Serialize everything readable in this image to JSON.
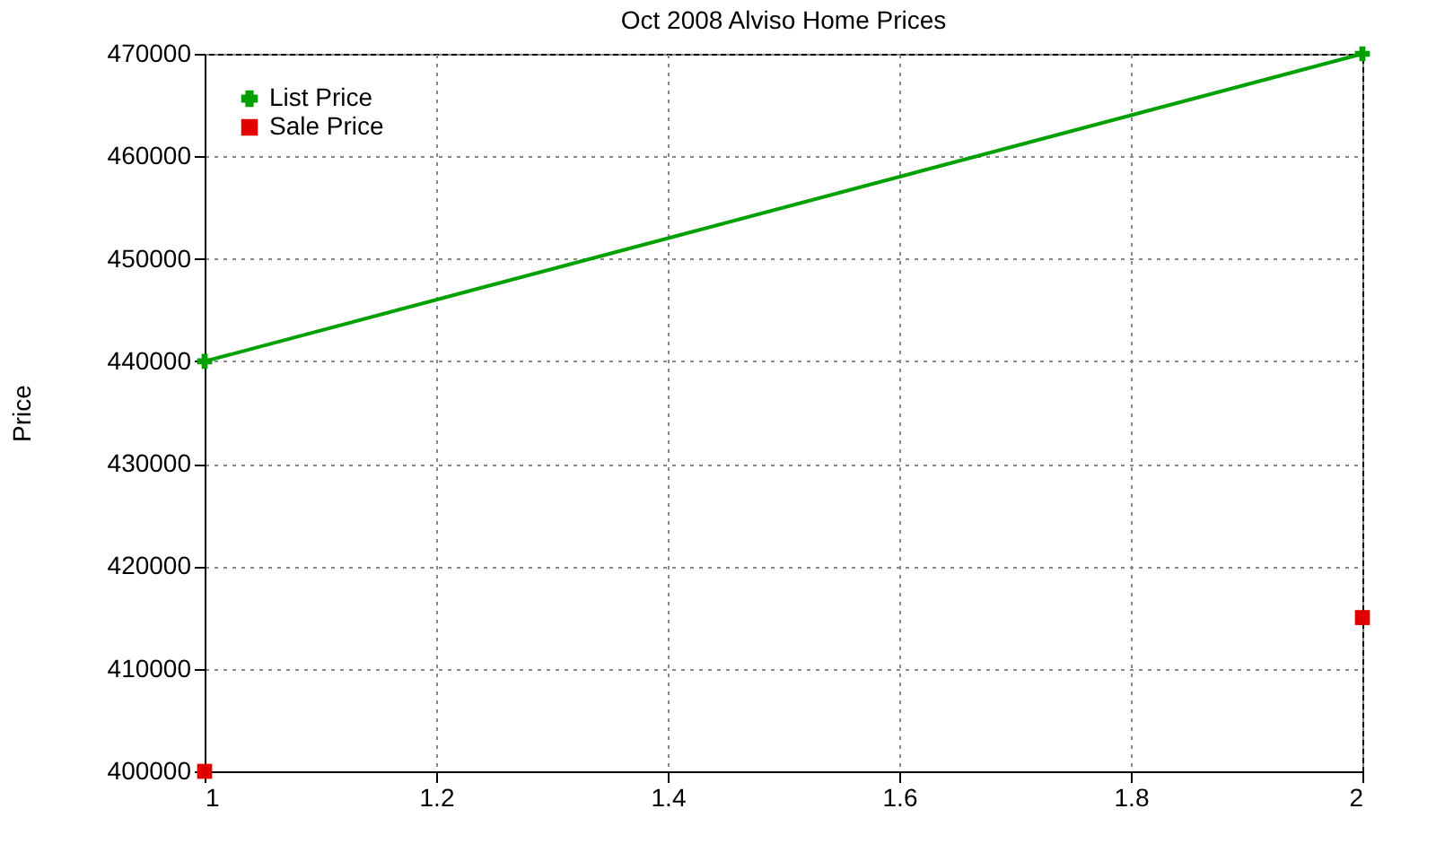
{
  "chart_data": {
    "type": "line",
    "title": "Oct 2008 Alviso Home Prices",
    "ylabel": "Price",
    "x": [
      1,
      2
    ],
    "series": [
      {
        "name": "List Price",
        "type": "line",
        "marker": "cross",
        "color": "#00a000",
        "values": [
          440000,
          470000
        ]
      },
      {
        "name": "Sale Price",
        "type": "scatter",
        "marker": "square",
        "color": "#e00000",
        "values": [
          400000,
          415000
        ]
      }
    ],
    "xlim": [
      1,
      2
    ],
    "xticks": [
      1,
      1.2,
      1.4,
      1.6,
      1.8,
      2
    ],
    "ylim": [
      400000,
      470000
    ],
    "yticks": [
      400000,
      410000,
      420000,
      430000,
      440000,
      450000,
      460000,
      470000
    ],
    "grid": true,
    "legend": "top left"
  }
}
